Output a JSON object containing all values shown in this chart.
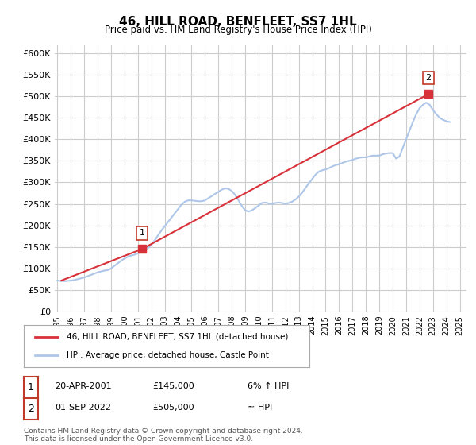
{
  "title": "46, HILL ROAD, BENFLEET, SS7 1HL",
  "subtitle": "Price paid vs. HM Land Registry's House Price Index (HPI)",
  "ylabel_ticks": [
    "£0",
    "£50K",
    "£100K",
    "£150K",
    "£200K",
    "£250K",
    "£300K",
    "£350K",
    "£400K",
    "£450K",
    "£500K",
    "£550K",
    "£600K"
  ],
  "ytick_values": [
    0,
    50000,
    100000,
    150000,
    200000,
    250000,
    300000,
    350000,
    400000,
    450000,
    500000,
    550000,
    600000
  ],
  "ylim": [
    0,
    620000
  ],
  "hpi_color": "#aec6e8",
  "price_color": "#d9313a",
  "annotation1_color": "#c0392b",
  "annotation2_color": "#c0392b",
  "grid_color": "#cccccc",
  "bg_color": "#ffffff",
  "legend_label_price": "46, HILL ROAD, BENFLEET, SS7 1HL (detached house)",
  "legend_label_hpi": "HPI: Average price, detached house, Castle Point",
  "annotation1": {
    "num": "1",
    "date": "20-APR-2001",
    "price": "£145,000",
    "note": "6% ↑ HPI"
  },
  "annotation2": {
    "num": "2",
    "date": "01-SEP-2022",
    "price": "£505,000",
    "note": "≈ HPI"
  },
  "footer": "Contains HM Land Registry data © Crown copyright and database right 2024.\nThis data is licensed under the Open Government Licence v3.0.",
  "hpi_data": {
    "years": [
      1995.0,
      1995.25,
      1995.5,
      1995.75,
      1996.0,
      1996.25,
      1996.5,
      1996.75,
      1997.0,
      1997.25,
      1997.5,
      1997.75,
      1998.0,
      1998.25,
      1998.5,
      1998.75,
      1999.0,
      1999.25,
      1999.5,
      1999.75,
      2000.0,
      2000.25,
      2000.5,
      2000.75,
      2001.0,
      2001.25,
      2001.5,
      2001.75,
      2002.0,
      2002.25,
      2002.5,
      2002.75,
      2003.0,
      2003.25,
      2003.5,
      2003.75,
      2004.0,
      2004.25,
      2004.5,
      2004.75,
      2005.0,
      2005.25,
      2005.5,
      2005.75,
      2006.0,
      2006.25,
      2006.5,
      2006.75,
      2007.0,
      2007.25,
      2007.5,
      2007.75,
      2008.0,
      2008.25,
      2008.5,
      2008.75,
      2009.0,
      2009.25,
      2009.5,
      2009.75,
      2010.0,
      2010.25,
      2010.5,
      2010.75,
      2011.0,
      2011.25,
      2011.5,
      2011.75,
      2012.0,
      2012.25,
      2012.5,
      2012.75,
      2013.0,
      2013.25,
      2013.5,
      2013.75,
      2014.0,
      2014.25,
      2014.5,
      2014.75,
      2015.0,
      2015.25,
      2015.5,
      2015.75,
      2016.0,
      2016.25,
      2016.5,
      2016.75,
      2017.0,
      2017.25,
      2017.5,
      2017.75,
      2018.0,
      2018.25,
      2018.5,
      2018.75,
      2019.0,
      2019.25,
      2019.5,
      2019.75,
      2020.0,
      2020.25,
      2020.5,
      2020.75,
      2021.0,
      2021.25,
      2021.5,
      2021.75,
      2022.0,
      2022.25,
      2022.5,
      2022.75,
      2023.0,
      2023.25,
      2023.5,
      2023.75,
      2024.0,
      2024.25
    ],
    "values": [
      72000,
      71000,
      70500,
      71000,
      72000,
      73000,
      75000,
      77000,
      79000,
      82000,
      85000,
      88000,
      91000,
      93000,
      95000,
      96000,
      100000,
      106000,
      112000,
      118000,
      123000,
      127000,
      130000,
      132000,
      135000,
      139000,
      143000,
      147000,
      155000,
      165000,
      177000,
      188000,
      198000,
      208000,
      218000,
      228000,
      238000,
      248000,
      255000,
      258000,
      258000,
      257000,
      256000,
      256000,
      258000,
      263000,
      268000,
      273000,
      278000,
      283000,
      286000,
      285000,
      280000,
      271000,
      258000,
      245000,
      235000,
      232000,
      235000,
      240000,
      246000,
      252000,
      253000,
      251000,
      250000,
      252000,
      253000,
      252000,
      250000,
      252000,
      255000,
      260000,
      267000,
      276000,
      287000,
      298000,
      308000,
      318000,
      325000,
      328000,
      330000,
      333000,
      337000,
      340000,
      342000,
      345000,
      348000,
      350000,
      352000,
      355000,
      357000,
      358000,
      358000,
      360000,
      362000,
      362000,
      362000,
      365000,
      367000,
      368000,
      368000,
      355000,
      360000,
      380000,
      400000,
      420000,
      440000,
      458000,
      472000,
      480000,
      485000,
      480000,
      468000,
      458000,
      450000,
      445000,
      442000,
      440000
    ]
  },
  "price_data": {
    "years": [
      1995.3,
      2001.3,
      2022.67
    ],
    "values": [
      72000,
      145000,
      505000
    ]
  },
  "sale_points": {
    "years": [
      2001.3,
      2022.67
    ],
    "values": [
      145000,
      505000
    ],
    "labels": [
      "1",
      "2"
    ]
  }
}
